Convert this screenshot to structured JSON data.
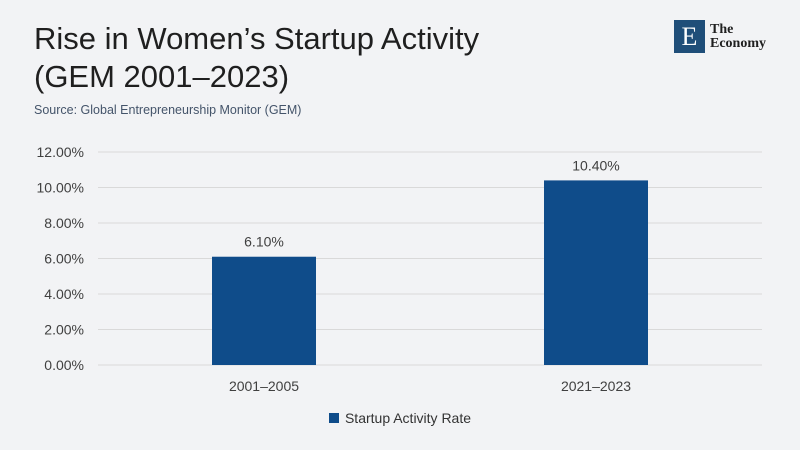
{
  "title_line1": "Rise in Women’s Startup Activity",
  "title_line2": "(GEM 2001–2023)",
  "source": "Source: Global Entrepreneurship Monitor (GEM)",
  "logo": {
    "mark": "E",
    "line1": "The",
    "line2": "Economy"
  },
  "colors": {
    "bar": "#0f4c8a",
    "grid": "#d9d9d9",
    "text": "#404040"
  },
  "chart_data": {
    "type": "bar",
    "categories": [
      "2001–2005",
      "2021–2023"
    ],
    "series": [
      {
        "name": "Startup Activity Rate",
        "values": [
          6.1,
          10.4
        ]
      }
    ],
    "data_labels": [
      "6.10%",
      "10.40%"
    ],
    "y_ticks": [
      "0.00%",
      "2.00%",
      "4.00%",
      "6.00%",
      "8.00%",
      "10.00%",
      "12.00%"
    ],
    "ylim": [
      0,
      12
    ],
    "grid": true,
    "legend_position": "bottom"
  }
}
